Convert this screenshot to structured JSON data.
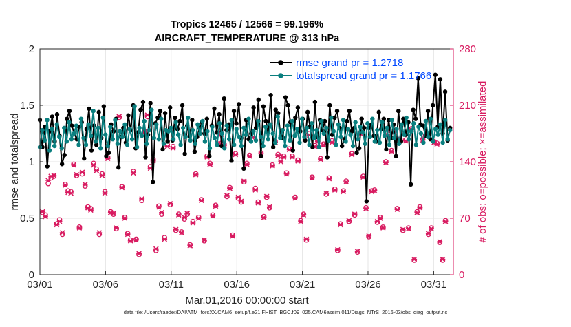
{
  "chart_data": {
    "type": "line",
    "title_line1": "Tropics 12465 / 12566 = 99.196%",
    "title_line2": "AIRCRAFT_TEMPERATURE @ 313 hPa",
    "xlabel": "Mar.01,2016 00:00:00 start",
    "ylabel_left": "rmse and totalspread",
    "ylabel_right": "# of obs: o=possible; ×=assimilated",
    "x_ticks": [
      "03/01",
      "03/06",
      "03/11",
      "03/16",
      "03/21",
      "03/26",
      "03/31"
    ],
    "x_tick_days": [
      0,
      5,
      10,
      15,
      20,
      25,
      30
    ],
    "xlim": [
      0,
      31.5
    ],
    "y_left_ticks": [
      "0",
      "0.5",
      "1",
      "1.5",
      "2"
    ],
    "ylim_left": [
      0,
      2
    ],
    "y_right_ticks": [
      "0",
      "70",
      "140",
      "210",
      "280"
    ],
    "ylim_right": [
      0,
      280
    ],
    "grid": true,
    "legend_position": "top-right",
    "legend": [
      {
        "name": "rmse grand pr = 1.2718",
        "color": "#000000"
      },
      {
        "name": "totalspread grand pr = 1.1766",
        "color": "#008080"
      }
    ],
    "colors": {
      "rmse": "#000000",
      "spread": "#0a7f7f",
      "obs": "#d81b60",
      "legend_text": "#0047ff",
      "grid": "#e6e6e6"
    },
    "rmse_values": [
      1.37,
      1.13,
      1.31,
      0.96,
      1.27,
      1.4,
      1.18,
      1.42,
      1.23,
      0.98,
      1.06,
      1.38,
      1.45,
      1.32,
      1.25,
      1.2,
      1.31,
      1.35,
      1.03,
      1.29,
      1.47,
      1.1,
      1.32,
      1.15,
      1.44,
      1.21,
      1.49,
      1.05,
      1.08,
      1.33,
      1.27,
      1.38,
      0.95,
      1.22,
      1.3,
      1.17,
      1.41,
      1.28,
      1.5,
      1.12,
      1.26,
      1.46,
      1.53,
      1.04,
      1.24,
      1.52,
      0.82,
      1.34,
      1.39,
      1.45,
      1.11,
      1.43,
      1.18,
      1.48,
      1.19,
      1.39,
      1.29,
      1.36,
      1.5,
      1.07,
      1.32,
      1.23,
      1.37,
      1.09,
      1.22,
      1.3,
      1.35,
      1.25,
      1.38,
      1.05,
      1.32,
      1.47,
      1.26,
      1.42,
      1.14,
      1.56,
      1.28,
      1.33,
      1.01,
      1.45,
      1.34,
      1.51,
      1.21,
      0.94,
      1.37,
      1.2,
      1.25,
      1.48,
      1.3,
      1.55,
      1.05,
      1.49,
      1.36,
      1.27,
      1.59,
      1.13,
      1.46,
      1.43,
      1.23,
      1.21,
      1.57,
      1.5,
      1.35,
      1.1,
      1.39,
      1.48,
      1.27,
      1.38,
      1.19,
      1.44,
      1.31,
      1.13,
      1.53,
      1.22,
      1.37,
      1.28,
      1.36,
      1.04,
      1.5,
      1.24,
      1.39,
      1.45,
      1.3,
      1.14,
      1.2,
      1.36,
      1.45,
      1.27,
      1.3,
      1.08,
      1.12,
      1.38,
      1.3,
      0.65,
      1.3,
      1.33,
      1.23,
      1.18,
      1.44,
      1.29,
      1.38,
      1.11,
      1.37,
      1.21,
      1.33,
      1.05,
      1.45,
      1.18,
      1.38,
      1.24,
      1.35,
      0.8,
      1.46,
      1.38,
      1.74,
      1.33,
      1.32,
      1.23,
      1.45,
      1.2,
      1.5,
      1.77,
      1.31,
      1.73,
      1.25,
      1.62,
      1.19,
      1.3
    ],
    "spread_values": [
      1.13,
      1.28,
      1.19,
      1.37,
      1.1,
      1.29,
      1.14,
      1.33,
      1.22,
      1.12,
      1.3,
      1.18,
      1.35,
      1.2,
      1.25,
      1.32,
      1.15,
      1.38,
      1.21,
      1.15,
      1.33,
      1.23,
      1.45,
      1.18,
      1.3,
      1.12,
      1.39,
      1.24,
      1.14,
      1.31,
      1.2,
      1.37,
      1.16,
      1.27,
      1.22,
      1.33,
      1.15,
      1.29,
      1.2,
      1.49,
      1.13,
      1.3,
      1.23,
      1.36,
      1.16,
      1.28,
      1.46,
      1.21,
      1.33,
      1.2,
      1.38,
      1.16,
      1.28,
      1.27,
      1.3,
      1.2,
      1.35,
      1.24,
      1.15,
      1.3,
      1.22,
      1.39,
      1.19,
      1.28,
      1.16,
      1.33,
      1.25,
      1.36,
      1.18,
      1.27,
      1.12,
      1.31,
      1.21,
      1.15,
      1.34,
      1.25,
      1.12,
      1.32,
      1.2,
      1.37,
      1.15,
      1.29,
      1.22,
      1.14,
      1.3,
      1.24,
      1.38,
      1.18,
      1.27,
      1.19,
      1.36,
      1.22,
      1.14,
      1.31,
      1.2,
      1.33,
      1.25,
      1.17,
      1.4,
      1.21,
      1.28,
      1.14,
      1.32,
      1.19,
      1.36,
      1.23,
      1.29,
      1.17,
      1.38,
      1.22,
      1.3,
      1.15,
      1.34,
      1.21,
      1.28,
      1.13,
      1.36,
      1.25,
      1.3,
      1.19,
      1.39,
      1.27,
      1.15,
      1.33,
      1.22,
      1.37,
      1.18,
      1.29,
      1.24,
      1.14,
      1.35,
      1.2,
      1.31,
      1.26,
      1.16,
      1.34,
      1.22,
      1.38,
      1.18,
      1.28,
      1.17,
      1.35,
      1.23,
      1.3,
      1.15,
      1.37,
      1.21,
      1.29,
      1.16,
      1.33,
      1.24,
      1.39,
      1.2,
      1.27,
      1.34,
      1.15,
      1.31,
      1.25,
      1.17,
      1.36,
      1.22,
      1.38,
      1.18,
      1.29,
      1.24,
      1.33,
      1.17,
      1.37,
      1.2,
      1.28
    ],
    "obs_possible": [
      77,
      74,
      113,
      120,
      122,
      63,
      68,
      50,
      112,
      104,
      103,
      137,
      123,
      59,
      125,
      110,
      84,
      82,
      138,
      131,
      50,
      125,
      103,
      145,
      78,
      75,
      57,
      195,
      109,
      71,
      51,
      43,
      128,
      44,
      25,
      92,
      178,
      196,
      134,
      143,
      30,
      85,
      75,
      46,
      161,
      87,
      159,
      55,
      75,
      53,
      69,
      75,
      37,
      66,
      125,
      71,
      93,
      42,
      147,
      138,
      74,
      86,
      162,
      175,
      162,
      97,
      108,
      49,
      150,
      95,
      90,
      115,
      138,
      148,
      172,
      107,
      90,
      151,
      72,
      96,
      83,
      136,
      165,
      149,
      142,
      147,
      126,
      156,
      147,
      96,
      142,
      67,
      75,
      43,
      175,
      121,
      160,
      166,
      144,
      162,
      100,
      120,
      166,
      106,
      30,
      63,
      104,
      116,
      66,
      150,
      74,
      28,
      176,
      122,
      83,
      47,
      104,
      105,
      65,
      71,
      59,
      140,
      174,
      154,
      178,
      82,
      168,
      55,
      167,
      58,
      181,
      18,
      78,
      84,
      168,
      173,
      50,
      58,
      165,
      163,
      40,
      18,
      67
    ],
    "obs_assimilated": [
      78,
      72,
      117,
      122,
      123,
      62,
      66,
      52,
      111,
      102,
      101,
      136,
      124,
      58,
      127,
      112,
      83,
      80,
      136,
      129,
      52,
      123,
      101,
      144,
      77,
      76,
      58,
      196,
      108,
      70,
      50,
      42,
      126,
      43,
      26,
      94,
      177,
      198,
      132,
      141,
      32,
      84,
      77,
      44,
      159,
      88,
      157,
      56,
      74,
      52,
      71,
      76,
      36,
      64,
      124,
      70,
      92,
      43,
      146,
      137,
      73,
      85,
      163,
      174,
      160,
      98,
      107,
      48,
      149,
      96,
      91,
      116,
      137,
      147,
      170,
      105,
      89,
      150,
      71,
      97,
      84,
      135,
      164,
      148,
      140,
      146,
      125,
      155,
      146,
      95,
      141,
      66,
      74,
      44,
      173,
      120,
      159,
      165,
      143,
      161,
      101,
      119,
      164,
      105,
      31,
      62,
      103,
      115,
      67,
      149,
      75,
      29,
      175,
      121,
      82,
      48,
      103,
      104,
      66,
      70,
      58,
      139,
      173,
      153,
      177,
      81,
      167,
      56,
      166,
      57,
      180,
      19,
      77,
      83,
      167,
      172,
      51,
      57,
      164,
      162,
      41,
      19,
      66
    ]
  },
  "footnote": "data file: /Users/raeder/DAI/ATM_forcXX/CAM6_setup/f.e21.FHIST_BGC.f09_025.CAM6assim.011/Diags_NTrS_2016-03/obs_diag_output.nc"
}
